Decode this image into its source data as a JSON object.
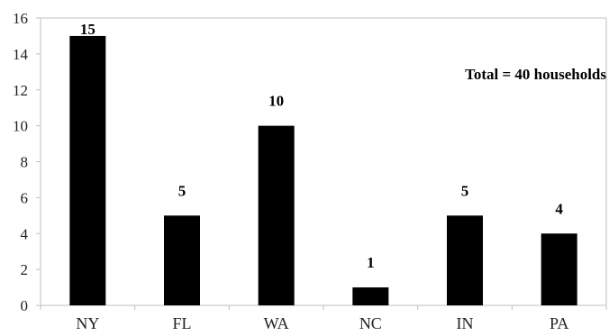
{
  "chart_data": {
    "type": "bar",
    "categories": [
      "NY",
      "FL",
      "WA",
      "NC",
      "IN",
      "PA"
    ],
    "values": [
      15,
      5,
      10,
      1,
      5,
      4
    ],
    "data_labels": [
      "15",
      "5",
      "10",
      "1",
      "5",
      "4"
    ],
    "title": "",
    "xlabel": "",
    "ylabel": "",
    "ylim": [
      0,
      16
    ],
    "yticks": [
      0,
      2,
      4,
      6,
      8,
      10,
      12,
      14,
      16
    ],
    "ytick_labels": [
      "0",
      "2",
      "4",
      "6",
      "8",
      "10",
      "12",
      "14",
      "16"
    ],
    "annotation": "Total = 40 households",
    "grid": false,
    "bar_color": "#000000",
    "axis_color": "#bfbfbf"
  }
}
